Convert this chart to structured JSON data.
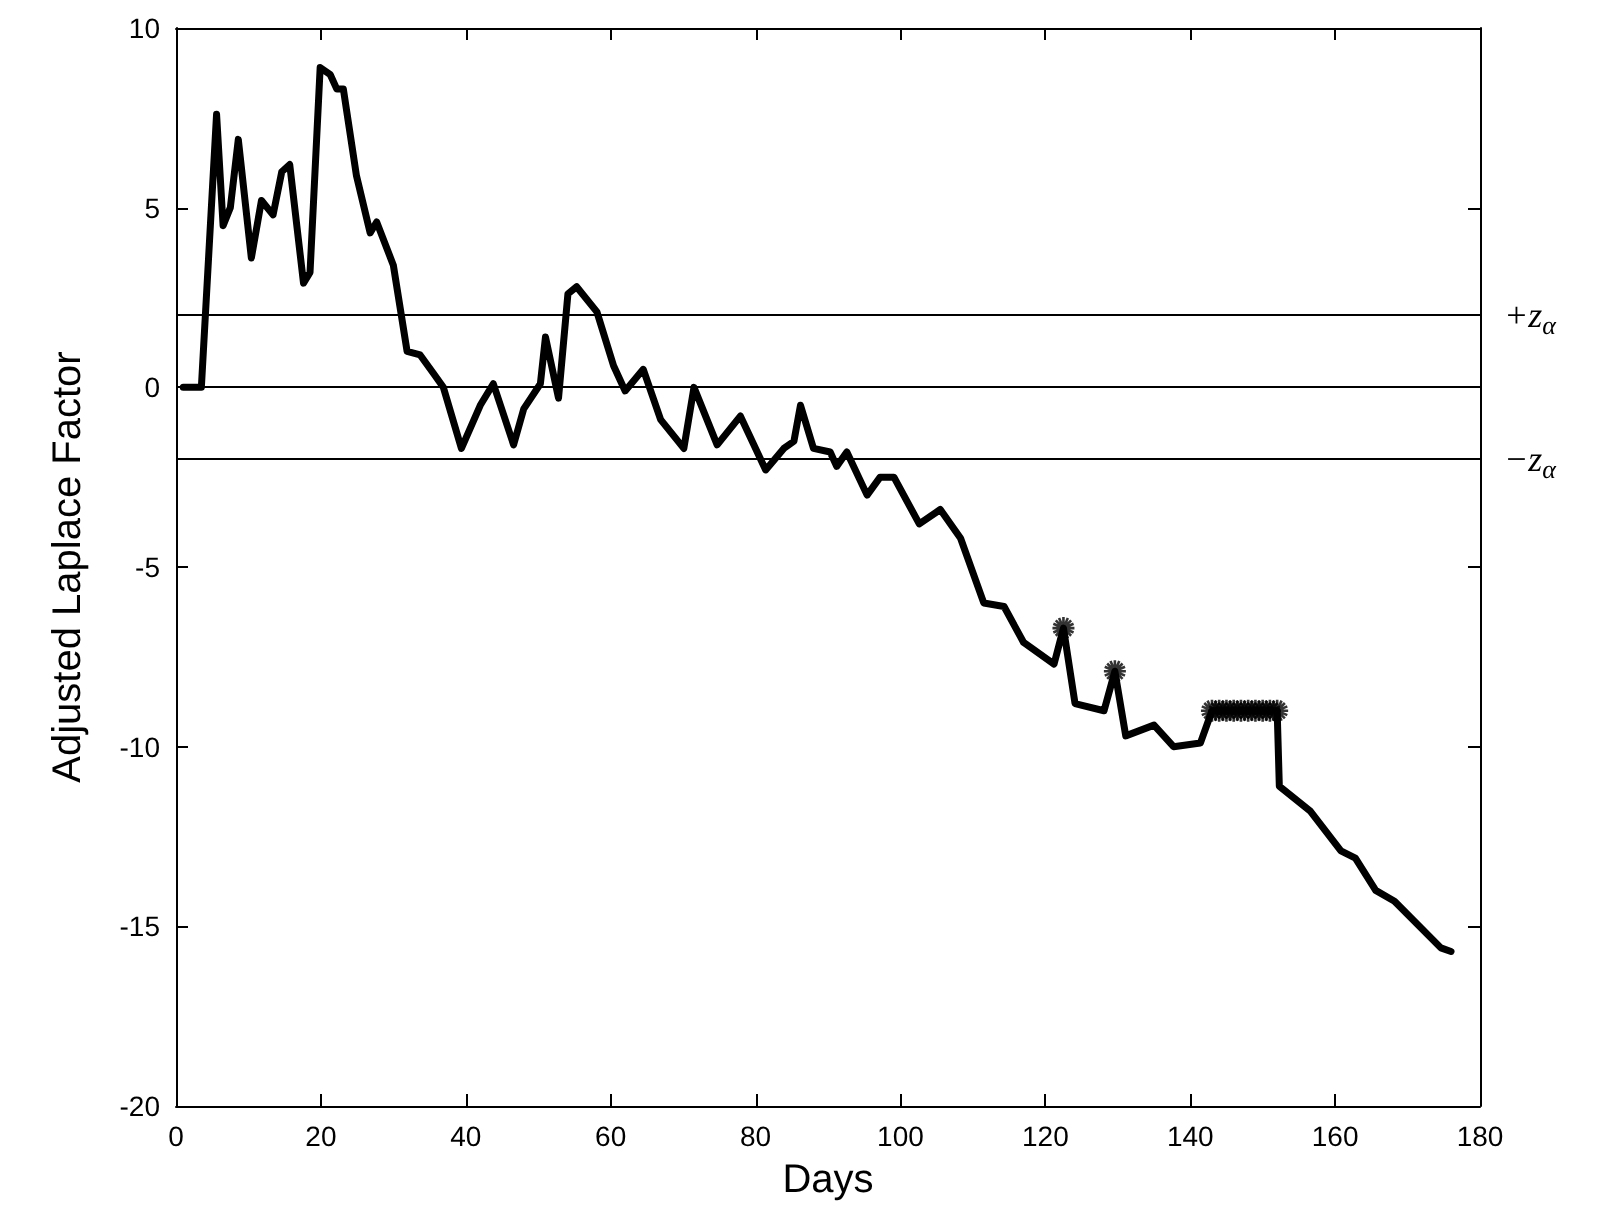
{
  "chart_data": {
    "type": "line",
    "xlabel": "Days",
    "ylabel": "Adjusted Laplace Factor",
    "xlim": [
      0,
      180
    ],
    "ylim": [
      -20,
      10
    ],
    "xticks": [
      0,
      20,
      40,
      60,
      80,
      100,
      120,
      140,
      160,
      180
    ],
    "yticks": [
      -20,
      -15,
      -10,
      -5,
      0,
      5,
      10
    ],
    "marker": "none",
    "line_style": "solid",
    "series": [
      {
        "color": "#000000",
        "x": [
          1,
          3.5,
          5.6,
          6.5,
          7.5,
          8.6,
          10.4,
          11.8,
          13.4,
          14.6,
          15.7,
          17.6,
          18.5,
          19.9,
          21.3,
          22.2,
          23.1,
          24.9,
          26.8,
          27.7,
          30,
          31.9,
          33.7,
          35.5,
          36.9,
          39.4,
          42,
          43.8,
          46.6,
          48,
          50.3,
          51,
          52.8,
          54.1,
          55.3,
          58.1,
          60.4,
          62,
          64.5,
          66.9,
          70.1,
          71.5,
          74.7,
          77.9,
          81.4,
          83.9,
          85.3,
          86.2,
          88,
          90.3,
          91.2,
          92.6,
          95.4,
          97.2,
          99.1,
          102.6,
          105.5,
          108.3,
          111.5,
          114.3,
          117,
          121.2,
          122.5,
          124.1,
          128.1,
          129.6,
          131.1,
          135,
          137.7,
          141.4,
          143,
          144,
          145,
          146,
          147,
          148,
          149,
          150,
          151,
          152,
          152.3,
          156.6,
          160.8,
          162.8,
          165.6,
          168.2,
          174.6,
          176
        ],
        "values": [
          0,
          0,
          7.6,
          4.5,
          5.0,
          6.9,
          3.6,
          5.2,
          4.8,
          6.0,
          6.2,
          2.9,
          3.2,
          8.9,
          8.7,
          8.3,
          8.3,
          5.9,
          4.3,
          4.6,
          3.4,
          1.0,
          0.9,
          0.4,
          0,
          -1.7,
          -0.5,
          0.1,
          -1.6,
          -0.6,
          0.1,
          1.4,
          -0.3,
          2.6,
          2.8,
          2.1,
          0.6,
          -0.1,
          0.5,
          -0.9,
          -1.7,
          0.0,
          -1.6,
          -0.8,
          -2.3,
          -1.7,
          -1.5,
          -0.5,
          -1.7,
          -1.8,
          -2.2,
          -1.8,
          -3.0,
          -2.5,
          -2.5,
          -3.8,
          -3.4,
          -4.2,
          -6.0,
          -6.1,
          -7.1,
          -7.7,
          -6.7,
          -8.8,
          -9.0,
          -7.9,
          -9.7,
          -9.4,
          -10.0,
          -9.9,
          -9.0,
          -9.0,
          -9.0,
          -9.0,
          -9.0,
          -9.0,
          -9.0,
          -9.0,
          -9.0,
          -9.0,
          -11.1,
          -11.8,
          -12.9,
          -13.1,
          -14.0,
          -14.3,
          -15.6,
          -15.7
        ]
      },
      {
        "type": "scatter",
        "marker": "cross",
        "color": "#000000",
        "x": [
          122.5,
          129.6,
          143,
          144,
          145,
          146,
          147,
          148,
          149,
          150,
          151,
          152
        ],
        "values": [
          -6.7,
          -7.9,
          -9.0,
          -9.0,
          -9.0,
          -9.0,
          -9.0,
          -9.0,
          -9.0,
          -9.0,
          -9.0,
          -9.0
        ]
      }
    ],
    "ref_lines": [
      {
        "axis": "y",
        "value": 2,
        "label": "+z$_{α}$"
      },
      {
        "axis": "y",
        "value": 0
      },
      {
        "axis": "y",
        "value": -2,
        "label": "−z$_{α}$"
      }
    ]
  }
}
